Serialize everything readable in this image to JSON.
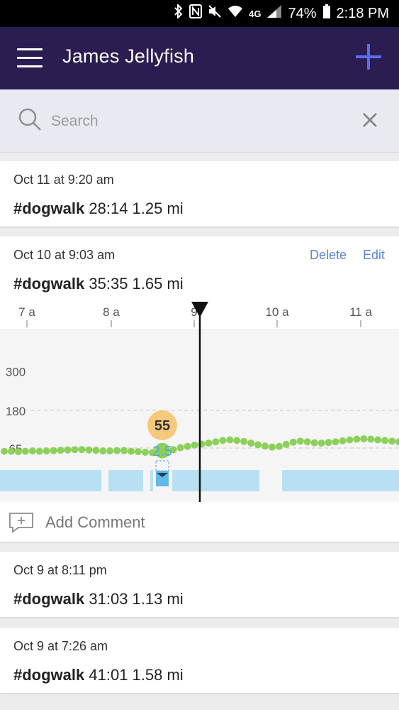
{
  "status": {
    "battery": "74%",
    "time": "2:18 PM",
    "network": "4G"
  },
  "header": {
    "title": "James Jellyfish"
  },
  "search": {
    "placeholder": "Search",
    "value": ""
  },
  "entries": [
    {
      "date": "Oct 11 at 9:20 am",
      "tag": "#dogwalk",
      "stats": "28:14 1.25 mi"
    },
    {
      "date": "Oct 10 at 9:03 am",
      "tag": "#dogwalk",
      "stats": "35:35 1.65 mi",
      "delete_label": "Delete",
      "edit_label": "Edit"
    },
    {
      "date": "Oct 9 at 8:11 pm",
      "tag": "#dogwalk",
      "stats": "31:03 1.13 mi"
    },
    {
      "date": "Oct 9 at 7:26 am",
      "tag": "#dogwalk",
      "stats": "41:01 1.58 mi"
    }
  ],
  "comment": {
    "label": "Add Comment"
  },
  "colors": {
    "appbar": "#2b1d52",
    "accent": "#5b6cf0",
    "heart_dot": "#8cd05a",
    "badge": "#f7c97d",
    "activity": "#b9e0f2",
    "link": "#5b84d6"
  },
  "chart_data": {
    "type": "line",
    "time_ticks": [
      "7 a",
      "8 a",
      "9",
      "10 a",
      "11 a"
    ],
    "y_ticks": [
      300,
      180,
      65
    ],
    "series": [
      {
        "values": [
          55,
          55,
          54,
          55,
          56,
          55,
          56,
          57,
          58,
          59,
          60,
          60,
          59,
          58,
          56,
          56,
          57,
          57,
          55,
          54,
          52,
          51,
          53,
          56,
          60,
          66,
          70,
          74,
          77,
          80,
          84,
          88,
          90,
          88,
          85,
          80,
          75,
          71,
          68,
          70,
          76,
          83,
          86,
          84,
          81,
          80,
          82,
          84,
          87,
          90,
          92,
          93,
          92,
          90,
          88,
          86,
          84
        ]
      }
    ],
    "marker": {
      "heart_rate": 55,
      "step_value": "2.5"
    }
  }
}
